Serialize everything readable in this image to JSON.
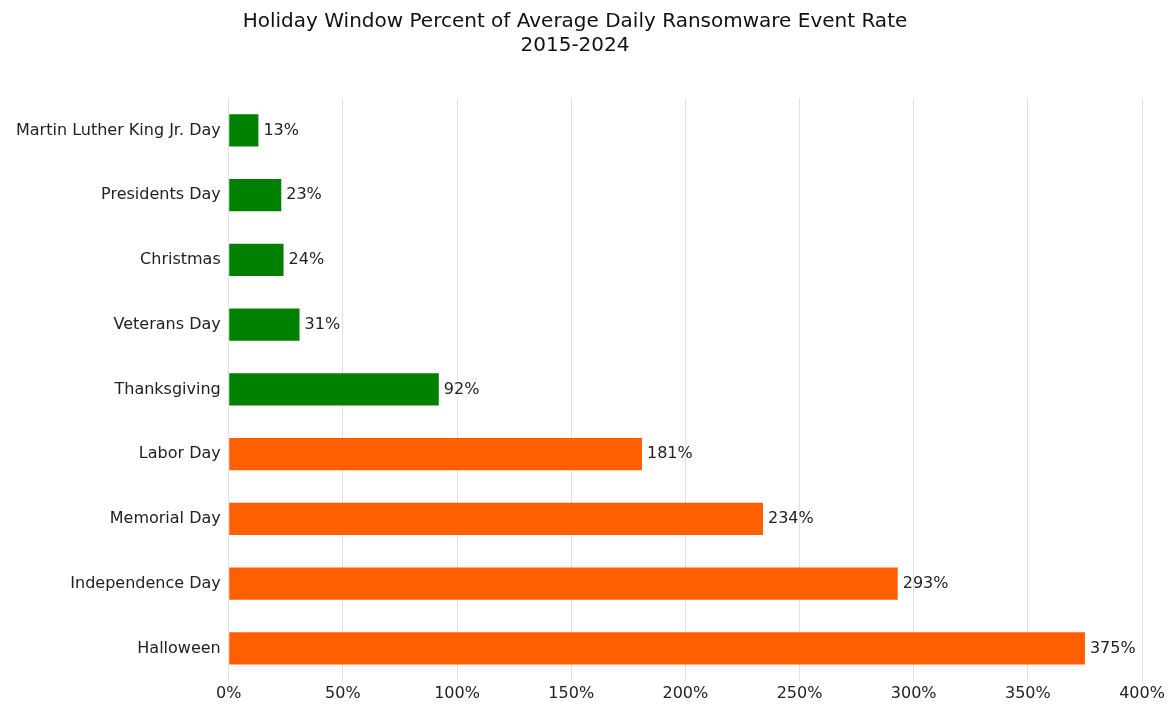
{
  "chart_data": {
    "type": "bar",
    "orientation": "horizontal",
    "title": "Holiday Window Percent of Average Daily Ransomware Event Rate",
    "subtitle": "2015-2024",
    "categories": [
      "Martin Luther King Jr. Day",
      "Presidents Day",
      "Christmas",
      "Veterans Day",
      "Thanksgiving",
      "Labor Day",
      "Memorial Day",
      "Independence Day",
      "Halloween"
    ],
    "values": [
      13,
      23,
      24,
      31,
      92,
      181,
      234,
      293,
      375
    ],
    "value_labels": [
      "13%",
      "23%",
      "24%",
      "31%",
      "92%",
      "181%",
      "234%",
      "293%",
      "375%"
    ],
    "colors": [
      "#008000",
      "#008000",
      "#008000",
      "#008000",
      "#008000",
      "#ff5f00",
      "#ff5f00",
      "#ff5f00",
      "#ff5f00"
    ],
    "xlim": [
      0,
      400
    ],
    "xticks": [
      {
        "value": 0,
        "label": "0%"
      },
      {
        "value": 50,
        "label": "50%"
      },
      {
        "value": 100,
        "label": "100%"
      },
      {
        "value": 150,
        "label": "150%"
      },
      {
        "value": 200,
        "label": "200%"
      },
      {
        "value": 250,
        "label": "250%"
      },
      {
        "value": 300,
        "label": "300%"
      },
      {
        "value": 350,
        "label": "350%"
      },
      {
        "value": 400,
        "label": "400%"
      }
    ],
    "grid": "x"
  }
}
